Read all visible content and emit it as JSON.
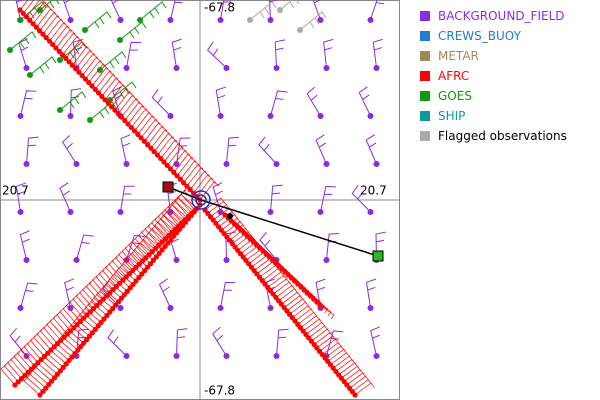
{
  "plot": {
    "labels": {
      "top": "-67.8",
      "bottom": "-67.8",
      "left": "20.7",
      "right": "20.7"
    }
  },
  "legend": [
    {
      "label": "BACKGROUND_FIELD",
      "color": "#8a2be2"
    },
    {
      "label": "CREWS_BUOY",
      "color": "#1e7fd0"
    },
    {
      "label": "METAR",
      "color": "#a0895a"
    },
    {
      "label": "AFRC",
      "color": "#ff0000"
    },
    {
      "label": "GOES",
      "color": "#119911"
    },
    {
      "label": "SHIP",
      "color": "#119999"
    },
    {
      "label": "Flagged observations",
      "color": "#aaaaaa"
    }
  ]
}
